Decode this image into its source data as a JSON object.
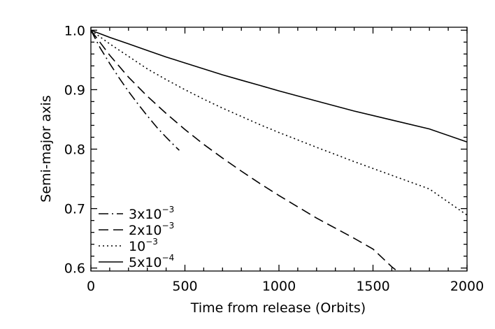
{
  "chart_data": {
    "type": "line",
    "xlabel": "Time from release (Orbits)",
    "ylabel": "Semi-major axis",
    "xlim": [
      0,
      2000
    ],
    "ylim": [
      0.595,
      1.005
    ],
    "x_ticks": [
      0,
      500,
      1000,
      1500,
      2000
    ],
    "x_tick_labels": [
      "0",
      "500",
      "1000",
      "1500",
      "2000"
    ],
    "y_ticks": [
      0.6,
      0.7,
      0.8,
      0.9,
      1.0
    ],
    "y_tick_labels": [
      "0.6",
      "0.7",
      "0.8",
      "0.9",
      "1.0"
    ],
    "grid": false,
    "legend_position": "bottom-left",
    "series": [
      {
        "legend_base": "3x10",
        "legend_exp": "−3",
        "style": "dash-dot",
        "x": [
          0,
          50,
          100,
          150,
          200,
          250,
          300,
          350,
          400,
          450,
          470
        ],
        "y": [
          1.0,
          0.97,
          0.944,
          0.92,
          0.897,
          0.876,
          0.856,
          0.837,
          0.82,
          0.804,
          0.798
        ]
      },
      {
        "legend_base": "2x10",
        "legend_exp": "−3",
        "style": "dashed",
        "x": [
          0,
          100,
          200,
          300,
          400,
          500,
          600,
          700,
          800,
          900,
          1000,
          1100,
          1200,
          1300,
          1400,
          1500,
          1600,
          1620
        ],
        "y": [
          1.0,
          0.958,
          0.921,
          0.889,
          0.86,
          0.833,
          0.808,
          0.785,
          0.763,
          0.742,
          0.722,
          0.703,
          0.684,
          0.667,
          0.65,
          0.632,
          0.602,
          0.597
        ]
      },
      {
        "legend_base": "10",
        "legend_exp": "−3",
        "style": "dotted",
        "x": [
          0,
          100,
          200,
          300,
          400,
          500,
          600,
          700,
          800,
          900,
          1000,
          1200,
          1400,
          1600,
          1800,
          2000
        ],
        "y": [
          1.0,
          0.977,
          0.956,
          0.935,
          0.917,
          0.9,
          0.884,
          0.869,
          0.855,
          0.841,
          0.828,
          0.803,
          0.779,
          0.756,
          0.733,
          0.689
        ]
      },
      {
        "legend_base": "5x10",
        "legend_exp": "−4",
        "style": "solid",
        "x": [
          0,
          100,
          200,
          300,
          400,
          500,
          600,
          700,
          800,
          900,
          1000,
          1200,
          1400,
          1600,
          1800,
          2000
        ],
        "y": [
          1.0,
          0.988,
          0.977,
          0.966,
          0.955,
          0.945,
          0.935,
          0.925,
          0.916,
          0.907,
          0.898,
          0.881,
          0.864,
          0.849,
          0.834,
          0.812
        ]
      }
    ]
  }
}
